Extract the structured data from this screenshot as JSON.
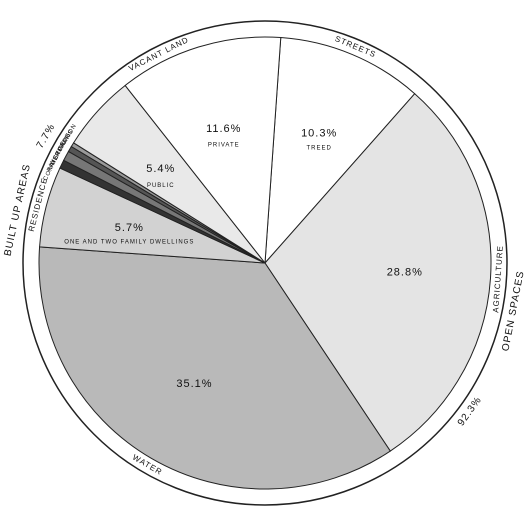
{
  "chart_data": {
    "type": "pie",
    "categories": [
      "STREETS",
      "AGRICULTURE",
      "WATER",
      "RESIDENCE",
      "COMMERCE",
      "RAILROADS",
      "INSTITUTION",
      "PARKS",
      "PUBLIC",
      "PRIVATE"
    ],
    "values": [
      10.3,
      28.8,
      35.1,
      5.7,
      0.6,
      0.7,
      0.4,
      0.3,
      5.4,
      11.6
    ],
    "value_labels": [
      "10.3%",
      "28.8%",
      "35.1%",
      "5.7%",
      null,
      null,
      null,
      null,
      "5.4%",
      "11.6%"
    ],
    "sublabels": [
      "TREED",
      null,
      null,
      "ONE AND TWO FAMILY DWELLINGS",
      null,
      null,
      null,
      null,
      null,
      null
    ],
    "colors": [
      "#ffffff",
      "#e4e4e4",
      "#b9b9b9",
      "#d2d2d2",
      "#333333",
      "#777777",
      "#555555",
      "#999999",
      "#e9e9e9",
      "#ffffff"
    ],
    "groups": [
      {
        "name": "OPEN SPACES",
        "value": 92.3,
        "label": "92.3%"
      },
      {
        "name": "BUILT UP AREAS",
        "value": 7.7,
        "label": "7.7%"
      }
    ],
    "ring_group": "VACANT LAND"
  }
}
